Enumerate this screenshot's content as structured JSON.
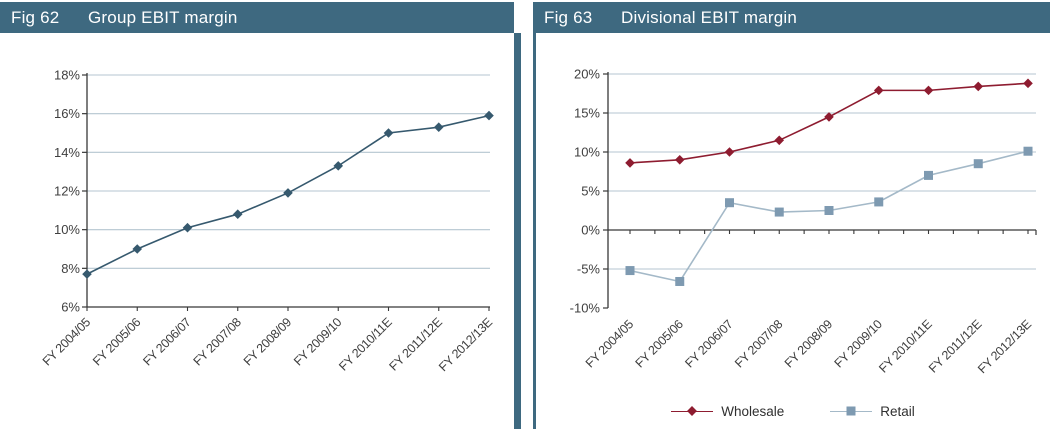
{
  "figures": [
    {
      "fig_label": "Fig 62",
      "title": "Group EBIT margin"
    },
    {
      "fig_label": "Fig 63",
      "title": "Divisional EBIT margin"
    }
  ],
  "colors": {
    "header_bg": "#3e6980",
    "header_text": "#ffffff",
    "divider": "#3e6980",
    "grid": "#b5c6d0",
    "axis": "#383838",
    "tick_label": "#3f3f3f",
    "group_series": "#36596e",
    "wholesale": "#8e1c30",
    "retail_marker": "#7e9ab1",
    "retail_line": "#a4b9c8"
  },
  "chart_data": [
    {
      "type": "line",
      "title": "Group EBIT margin",
      "categories": [
        "FY 2004/05",
        "FY 2005/06",
        "FY 2006/07",
        "FY 2007/08",
        "FY 2008/09",
        "FY 2009/10",
        "FY 2010/11E",
        "FY 2011/12E",
        "FY 2012/13E"
      ],
      "series": [
        {
          "name": "Group EBIT margin",
          "marker": "diamond",
          "color_key": "group_series",
          "values": [
            7.7,
            9.0,
            10.1,
            10.8,
            11.9,
            13.3,
            15.0,
            15.3,
            15.9
          ]
        }
      ],
      "ylim": [
        6,
        18
      ],
      "ylabel": "",
      "xlabel": "",
      "yticks": [
        {
          "value": 6,
          "label": "6%"
        },
        {
          "value": 8,
          "label": "8%"
        },
        {
          "value": 10,
          "label": "10%"
        },
        {
          "value": 12,
          "label": "12%"
        },
        {
          "value": 14,
          "label": "14%"
        },
        {
          "value": 16,
          "label": "16%"
        },
        {
          "value": 18,
          "label": "18%"
        }
      ],
      "x_axis_at": 6,
      "grid": true,
      "legend": "none"
    },
    {
      "type": "line",
      "title": "Divisional EBIT margin",
      "categories": [
        "FY 2004/05",
        "FY 2005/06",
        "FY 2006/07",
        "FY 2007/08",
        "FY 2008/09",
        "FY 2009/10",
        "FY 2010/11E",
        "FY 2011/12E",
        "FY 2012/13E"
      ],
      "series": [
        {
          "name": "Wholesale",
          "marker": "diamond",
          "color_key": "wholesale",
          "values": [
            8.6,
            9.0,
            10.0,
            11.5,
            14.5,
            17.9,
            17.9,
            18.4,
            18.8
          ]
        },
        {
          "name": "Retail",
          "marker": "square",
          "color_key": "retail_marker",
          "line_color_key": "retail_line",
          "values": [
            -5.2,
            -6.6,
            3.5,
            2.3,
            2.5,
            3.6,
            7.0,
            8.5,
            10.1
          ]
        }
      ],
      "ylim": [
        -10,
        20
      ],
      "ylabel": "",
      "xlabel": "",
      "yticks": [
        {
          "value": -10,
          "label": "-10%"
        },
        {
          "value": -5,
          "label": "-5%"
        },
        {
          "value": 0,
          "label": "0%"
        },
        {
          "value": 5,
          "label": "5%"
        },
        {
          "value": 10,
          "label": "10%"
        },
        {
          "value": 15,
          "label": "15%"
        },
        {
          "value": 20,
          "label": "20%"
        }
      ],
      "x_axis_at": 0,
      "minor_x_ticks": true,
      "grid": true,
      "legend": "bottom"
    }
  ]
}
